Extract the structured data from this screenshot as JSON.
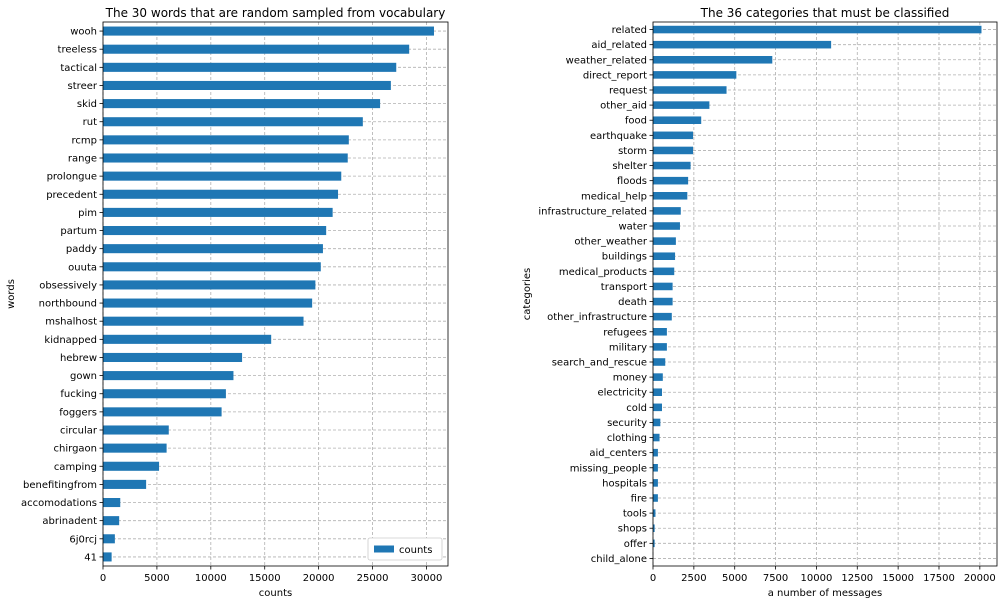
{
  "chart_data": [
    {
      "type": "bar",
      "orientation": "horizontal",
      "title": "The 30 words that are random sampled from vocabulary",
      "xlabel": "counts",
      "ylabel": "words",
      "xlim": [
        0,
        32000
      ],
      "xticks": [
        0,
        5000,
        10000,
        15000,
        20000,
        25000,
        30000
      ],
      "grid": true,
      "legend": {
        "position": "bottom-right",
        "entries": [
          "counts"
        ]
      },
      "series": [
        {
          "name": "counts",
          "color": "#1f77b4"
        }
      ],
      "categories": [
        "wooh",
        "treeless",
        "tactical",
        "streer",
        "skid",
        "rut",
        "rcmp",
        "range",
        "prolongue",
        "precedent",
        "pim",
        "partum",
        "paddy",
        "ouuta",
        "obsessively",
        "northbound",
        "mshalhost",
        "kidnapped",
        "hebrew",
        "gown",
        "fucking",
        "foggers",
        "circular",
        "chirgaon",
        "camping",
        "benefitingfrom",
        "accomodations",
        "abrinadent",
        "6j0rcj",
        "41"
      ],
      "values": [
        30700,
        28400,
        27200,
        26700,
        25700,
        24100,
        22800,
        22700,
        22100,
        21800,
        21300,
        20700,
        20400,
        20200,
        19700,
        19400,
        18600,
        15600,
        12900,
        12100,
        11400,
        11000,
        6100,
        5900,
        5200,
        4000,
        1600,
        1500,
        1100,
        800
      ]
    },
    {
      "type": "bar",
      "orientation": "horizontal",
      "title": "The 36 categories that must be classified",
      "xlabel": "a number of messages",
      "ylabel": "categories",
      "xlim": [
        0,
        21050
      ],
      "xticks": [
        0,
        2500,
        5000,
        7500,
        10000,
        12500,
        15000,
        17500,
        20000
      ],
      "grid": true,
      "series": [
        {
          "color": "#1f77b4"
        }
      ],
      "categories": [
        "related",
        "aid_related",
        "weather_related",
        "direct_report",
        "request",
        "other_aid",
        "food",
        "earthquake",
        "storm",
        "shelter",
        "floods",
        "medical_help",
        "infrastructure_related",
        "water",
        "other_weather",
        "buildings",
        "medical_products",
        "transport",
        "death",
        "other_infrastructure",
        "refugees",
        "military",
        "search_and_rescue",
        "money",
        "electricity",
        "cold",
        "security",
        "clothing",
        "aid_centers",
        "missing_people",
        "hospitals",
        "fire",
        "tools",
        "shops",
        "offer",
        "child_alone"
      ],
      "values": [
        20100,
        10900,
        7300,
        5100,
        4500,
        3450,
        2950,
        2450,
        2450,
        2300,
        2150,
        2100,
        1700,
        1650,
        1400,
        1350,
        1300,
        1200,
        1200,
        1150,
        850,
        850,
        750,
        600,
        550,
        550,
        450,
        400,
        300,
        300,
        300,
        300,
        150,
        100,
        100,
        0
      ]
    }
  ]
}
